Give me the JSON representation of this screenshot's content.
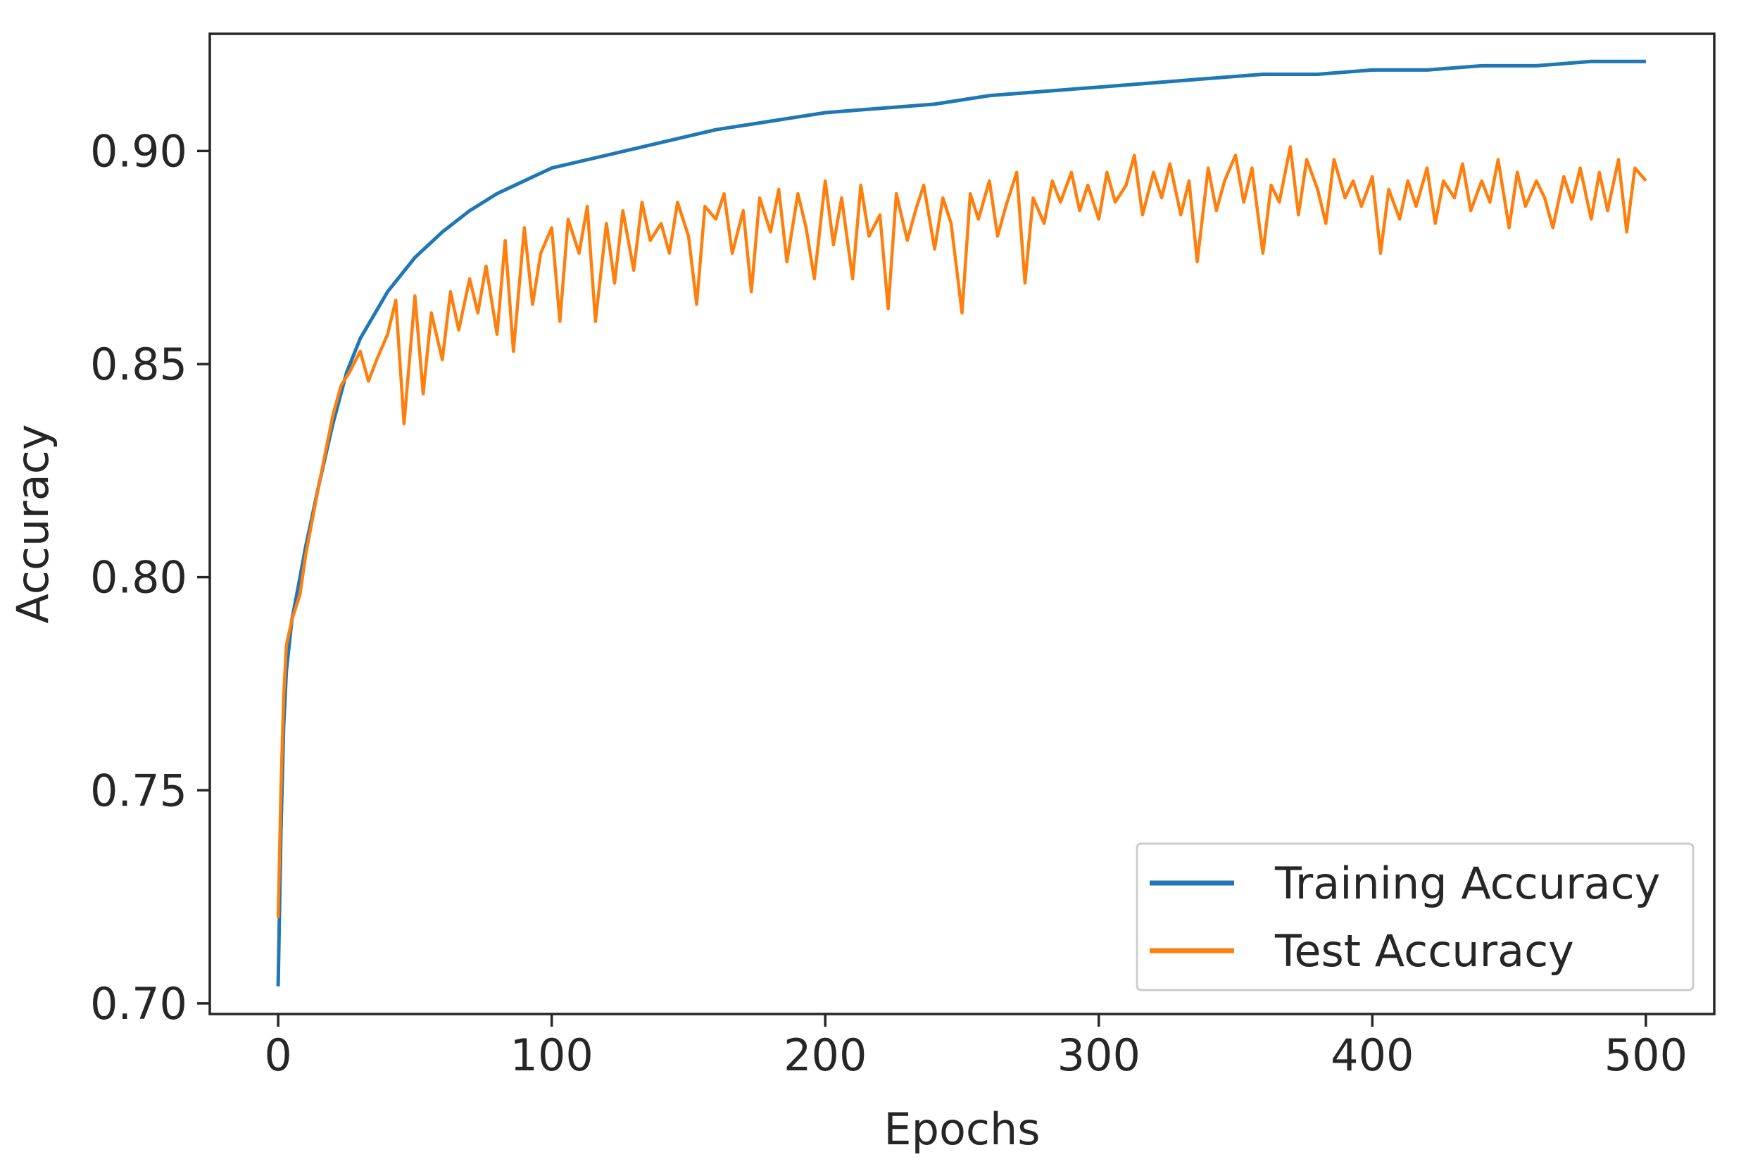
{
  "chart_data": {
    "type": "line",
    "title": "",
    "xlabel": "Epochs",
    "ylabel": "Accuracy",
    "xlim": [
      -25,
      525
    ],
    "ylim": [
      0.6975,
      0.9275
    ],
    "xticks": [
      0,
      100,
      200,
      300,
      400,
      500
    ],
    "xtick_labels": [
      "0",
      "100",
      "200",
      "300",
      "400",
      "500"
    ],
    "yticks": [
      0.7,
      0.75,
      0.8,
      0.85,
      0.9
    ],
    "ytick_labels": [
      "0.70",
      "0.75",
      "0.80",
      "0.85",
      "0.90"
    ],
    "grid": false,
    "legend_position": "lower-right",
    "series": [
      {
        "name": "Training Accuracy",
        "color": "#1f77b4",
        "x": [
          0,
          1,
          2,
          3,
          5,
          8,
          10,
          15,
          20,
          25,
          30,
          40,
          50,
          60,
          70,
          80,
          90,
          100,
          120,
          140,
          160,
          180,
          200,
          220,
          240,
          260,
          280,
          300,
          320,
          340,
          360,
          380,
          400,
          420,
          440,
          460,
          480,
          500
        ],
        "values": [
          0.704,
          0.74,
          0.765,
          0.778,
          0.79,
          0.8,
          0.807,
          0.822,
          0.836,
          0.848,
          0.856,
          0.867,
          0.875,
          0.881,
          0.886,
          0.89,
          0.893,
          0.896,
          0.899,
          0.902,
          0.905,
          0.907,
          0.909,
          0.91,
          0.911,
          0.913,
          0.914,
          0.915,
          0.916,
          0.917,
          0.918,
          0.918,
          0.919,
          0.919,
          0.92,
          0.92,
          0.921,
          0.921
        ]
      },
      {
        "name": "Test Accuracy",
        "color": "#ff7f0e",
        "x": [
          0,
          1,
          2,
          3,
          5,
          8,
          10,
          15,
          20,
          23,
          26,
          30,
          33,
          36,
          40,
          43,
          46,
          50,
          53,
          56,
          60,
          63,
          66,
          70,
          73,
          76,
          80,
          83,
          86,
          90,
          93,
          96,
          100,
          103,
          106,
          110,
          113,
          116,
          120,
          123,
          126,
          130,
          133,
          136,
          140,
          143,
          146,
          150,
          153,
          156,
          160,
          163,
          166,
          170,
          173,
          176,
          180,
          183,
          186,
          190,
          193,
          196,
          200,
          203,
          206,
          210,
          213,
          216,
          220,
          223,
          226,
          230,
          233,
          236,
          240,
          243,
          246,
          250,
          253,
          256,
          260,
          263,
          266,
          270,
          273,
          276,
          280,
          283,
          286,
          290,
          293,
          296,
          300,
          303,
          306,
          310,
          313,
          316,
          320,
          323,
          326,
          330,
          333,
          336,
          340,
          343,
          346,
          350,
          353,
          356,
          360,
          363,
          366,
          370,
          373,
          376,
          380,
          383,
          386,
          390,
          393,
          396,
          400,
          403,
          406,
          410,
          413,
          416,
          420,
          423,
          426,
          430,
          433,
          436,
          440,
          443,
          446,
          450,
          453,
          456,
          460,
          463,
          466,
          470,
          473,
          476,
          480,
          483,
          486,
          490,
          493,
          496,
          500
        ],
        "values": [
          0.72,
          0.75,
          0.772,
          0.784,
          0.79,
          0.796,
          0.805,
          0.822,
          0.838,
          0.845,
          0.848,
          0.853,
          0.846,
          0.851,
          0.857,
          0.865,
          0.836,
          0.866,
          0.843,
          0.862,
          0.851,
          0.867,
          0.858,
          0.87,
          0.862,
          0.873,
          0.857,
          0.879,
          0.853,
          0.882,
          0.864,
          0.876,
          0.882,
          0.86,
          0.884,
          0.876,
          0.887,
          0.86,
          0.883,
          0.869,
          0.886,
          0.872,
          0.888,
          0.879,
          0.883,
          0.876,
          0.888,
          0.88,
          0.864,
          0.887,
          0.884,
          0.89,
          0.876,
          0.886,
          0.867,
          0.889,
          0.881,
          0.891,
          0.874,
          0.89,
          0.882,
          0.87,
          0.893,
          0.878,
          0.889,
          0.87,
          0.892,
          0.88,
          0.885,
          0.863,
          0.89,
          0.879,
          0.886,
          0.892,
          0.877,
          0.889,
          0.883,
          0.862,
          0.89,
          0.884,
          0.893,
          0.88,
          0.887,
          0.895,
          0.869,
          0.889,
          0.883,
          0.893,
          0.888,
          0.895,
          0.886,
          0.892,
          0.884,
          0.895,
          0.888,
          0.892,
          0.899,
          0.885,
          0.895,
          0.889,
          0.897,
          0.885,
          0.893,
          0.874,
          0.896,
          0.886,
          0.893,
          0.899,
          0.888,
          0.896,
          0.876,
          0.892,
          0.888,
          0.901,
          0.885,
          0.898,
          0.891,
          0.883,
          0.898,
          0.889,
          0.893,
          0.887,
          0.894,
          0.876,
          0.891,
          0.884,
          0.893,
          0.887,
          0.896,
          0.883,
          0.893,
          0.889,
          0.897,
          0.886,
          0.893,
          0.888,
          0.898,
          0.882,
          0.895,
          0.887,
          0.893,
          0.889,
          0.882,
          0.894,
          0.888,
          0.896,
          0.884,
          0.895,
          0.886,
          0.898,
          0.881,
          0.896,
          0.893
        ]
      }
    ]
  }
}
